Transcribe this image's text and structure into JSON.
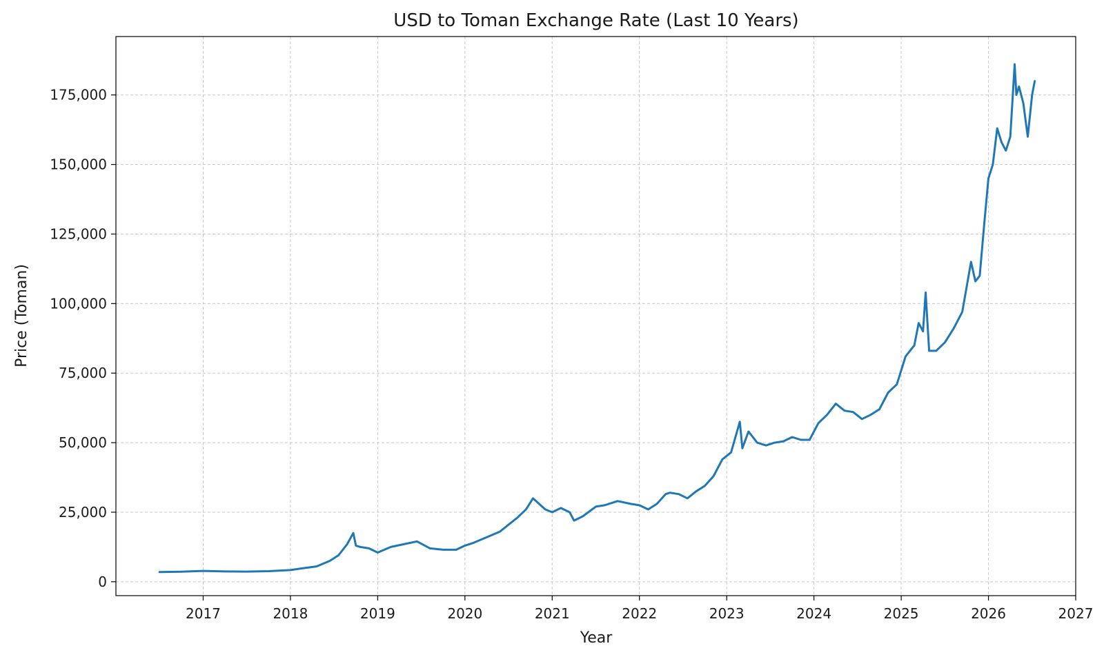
{
  "chart_data": {
    "type": "line",
    "title": "USD to Toman Exchange Rate (Last 10 Years)",
    "xlabel": "Year",
    "ylabel": "Price (Toman)",
    "xlim": [
      2016.0,
      2027.0
    ],
    "ylim": [
      -5000,
      196000
    ],
    "x_ticks": [
      2017,
      2018,
      2019,
      2020,
      2021,
      2022,
      2023,
      2024,
      2025,
      2026,
      2027
    ],
    "x_tick_labels": [
      "2017",
      "2018",
      "2019",
      "2020",
      "2021",
      "2022",
      "2023",
      "2024",
      "2025",
      "2026",
      "2027"
    ],
    "y_ticks": [
      0,
      25000,
      50000,
      75000,
      100000,
      125000,
      150000,
      175000
    ],
    "y_tick_labels": [
      "0",
      "25,000",
      "50,000",
      "75,000",
      "100,000",
      "125,000",
      "150,000",
      "175,000"
    ],
    "grid": true,
    "series": [
      {
        "color": "#1f77b4",
        "x": [
          2016.5,
          2016.75,
          2017.0,
          2017.25,
          2017.5,
          2017.75,
          2018.0,
          2018.15,
          2018.3,
          2018.45,
          2018.55,
          2018.65,
          2018.72,
          2018.75,
          2018.8,
          2018.9,
          2019.0,
          2019.15,
          2019.3,
          2019.45,
          2019.6,
          2019.75,
          2019.9,
          2020.0,
          2020.1,
          2020.25,
          2020.4,
          2020.5,
          2020.6,
          2020.7,
          2020.78,
          2020.85,
          2020.92,
          2021.0,
          2021.1,
          2021.2,
          2021.25,
          2021.35,
          2021.5,
          2021.6,
          2021.75,
          2021.9,
          2022.0,
          2022.1,
          2022.2,
          2022.3,
          2022.35,
          2022.45,
          2022.55,
          2022.65,
          2022.75,
          2022.85,
          2022.95,
          2023.05,
          2023.15,
          2023.18,
          2023.25,
          2023.35,
          2023.45,
          2023.55,
          2023.65,
          2023.75,
          2023.85,
          2023.95,
          2024.05,
          2024.15,
          2024.25,
          2024.35,
          2024.45,
          2024.55,
          2024.65,
          2024.75,
          2024.85,
          2024.95,
          2025.05,
          2025.15,
          2025.2,
          2025.25,
          2025.28,
          2025.32,
          2025.4,
          2025.5,
          2025.6,
          2025.7,
          2025.8,
          2025.85,
          2025.9,
          2025.95,
          2026.0,
          2026.05,
          2026.1,
          2026.15,
          2026.2,
          2026.25,
          2026.3,
          2026.32,
          2026.35,
          2026.4,
          2026.45,
          2026.5,
          2026.53
        ],
        "values": [
          3500,
          3600,
          3900,
          3700,
          3650,
          3800,
          4200,
          4900,
          5500,
          7500,
          9500,
          13500,
          17500,
          13000,
          12500,
          12000,
          10500,
          12500,
          13500,
          14500,
          12000,
          11500,
          11500,
          13000,
          14000,
          16000,
          18000,
          20500,
          23000,
          26000,
          30000,
          28000,
          26000,
          25000,
          26500,
          25000,
          22000,
          23500,
          27000,
          27500,
          29000,
          28000,
          27500,
          26000,
          28000,
          31500,
          32000,
          31500,
          30000,
          32500,
          34500,
          38000,
          44000,
          46500,
          57500,
          48000,
          54000,
          50000,
          49000,
          50000,
          50500,
          52000,
          51000,
          51000,
          57000,
          60000,
          64000,
          61500,
          61000,
          58500,
          60000,
          62000,
          68000,
          71000,
          81000,
          85000,
          93000,
          90000,
          104000,
          83000,
          83000,
          86000,
          91000,
          97000,
          115000,
          108000,
          110000,
          128000,
          145000,
          150000,
          163000,
          158000,
          155000,
          160000,
          186000,
          175000,
          178000,
          172000,
          160000,
          175000,
          180000
        ]
      }
    ]
  }
}
